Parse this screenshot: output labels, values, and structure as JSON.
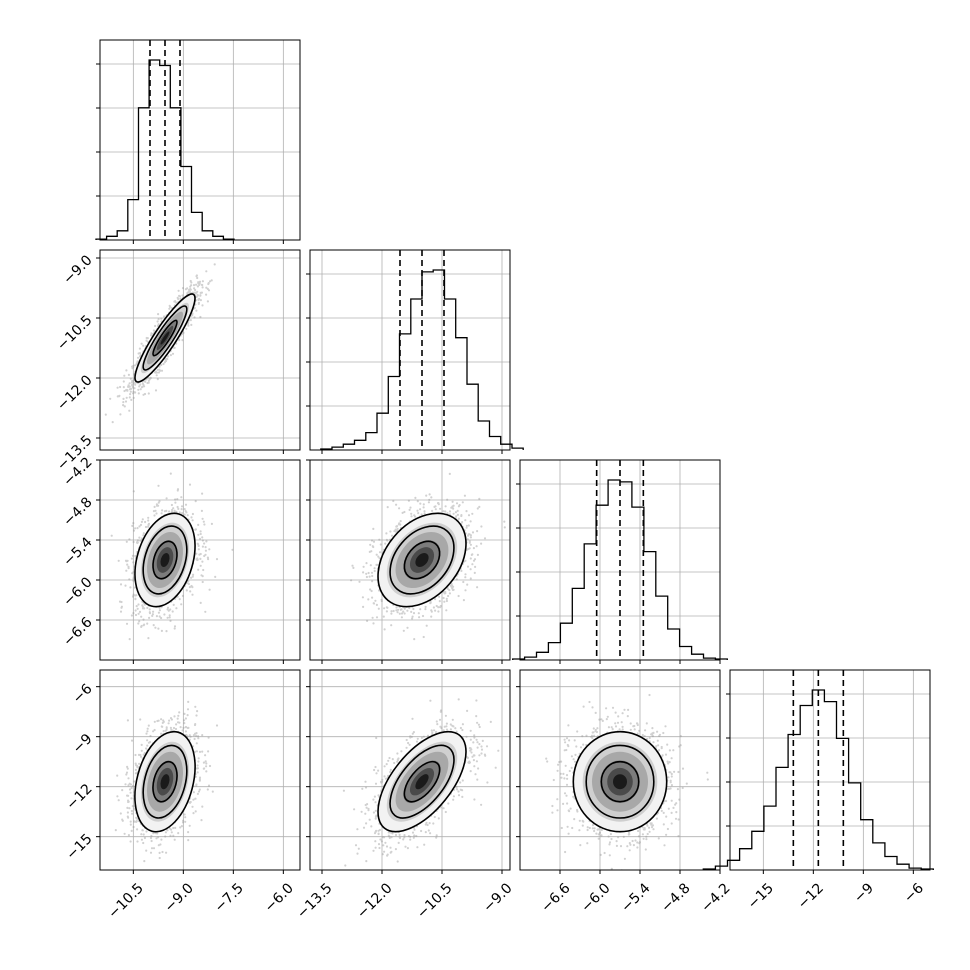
{
  "chart_data": {
    "type": "corner",
    "grid": true,
    "parameters": 4,
    "ticks": [
      [
        "−10.5",
        "−9.0",
        "−7.5",
        "−6.0"
      ],
      [
        "−13.5",
        "−12.0",
        "−10.5",
        "−9.0"
      ],
      [
        "−6.6",
        "−6.0",
        "−5.4",
        "−4.8",
        "−4.2"
      ],
      [
        "−15",
        "−12",
        "−9",
        "−6"
      ]
    ],
    "ranges": [
      [
        -11.5,
        -5.5
      ],
      [
        -13.8,
        -8.8
      ],
      [
        -7.2,
        -4.2
      ],
      [
        -17,
        -5
      ]
    ],
    "quantiles": [
      [
        -10.0,
        -9.55,
        -9.1
      ],
      [
        -11.55,
        -11.0,
        -10.45
      ],
      [
        -6.05,
        -5.7,
        -5.35
      ],
      [
        -13.2,
        -11.7,
        -10.2
      ]
    ],
    "histograms": [
      [
        0.5,
        2,
        5,
        22,
        72,
        98,
        95,
        72,
        40,
        15,
        5,
        2,
        0.5
      ],
      [
        0.5,
        1.5,
        3,
        5,
        9,
        19,
        38,
        60,
        78,
        92,
        93,
        78,
        58,
        34,
        15,
        7,
        3,
        1
      ],
      [
        0.5,
        1.5,
        4,
        9,
        19,
        37,
        60,
        80,
        93,
        92,
        79,
        56,
        33,
        16,
        7,
        3,
        1,
        0.5
      ],
      [
        0.5,
        2,
        5,
        11,
        20,
        33,
        53,
        70,
        85,
        93,
        87,
        68,
        45,
        26,
        14,
        7,
        3,
        1,
        0.5
      ]
    ],
    "correlations": {
      "1-0": 0.9,
      "2-0": 0.3,
      "2-1": 0.35,
      "3-0": 0.3,
      "3-1": 0.6,
      "3-2": 0.0
    }
  }
}
